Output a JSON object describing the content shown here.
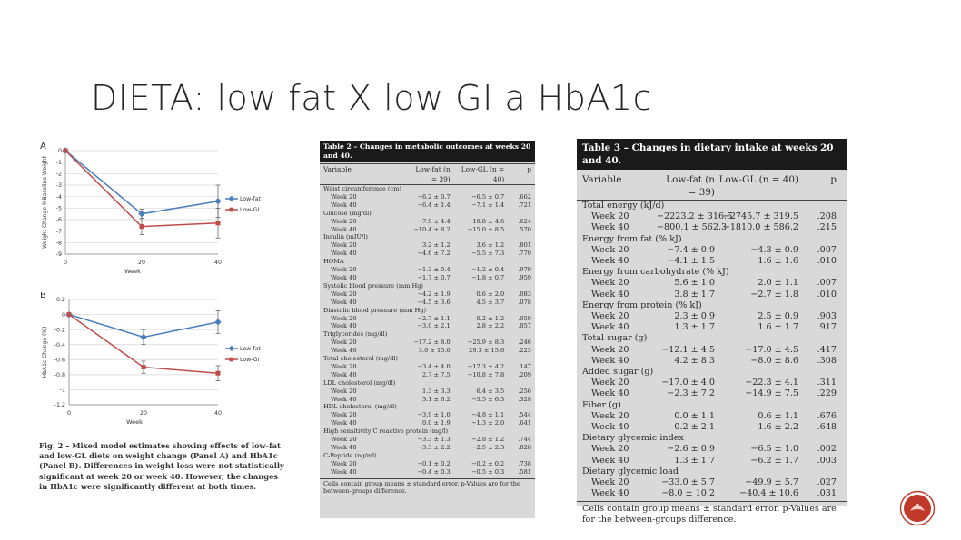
{
  "slide": {
    "title": "DIETA: low fat X low GI a HbA1c"
  },
  "chart_data": [
    {
      "type": "line",
      "panel_label": "A",
      "ylabel": "Weight Change %Baseline Weight",
      "xlabel": "Week",
      "x": [
        0,
        20,
        40
      ],
      "xticks": [
        "0",
        "20",
        "40"
      ],
      "yticks": [
        "0",
        "-1",
        "-2",
        "-3",
        "-4",
        "-5",
        "-6",
        "-7",
        "-8",
        "-9"
      ],
      "ylim": [
        -9,
        0
      ],
      "grid": true,
      "legend": "right",
      "series": [
        {
          "name": "Low-fat",
          "values": [
            0,
            -5.5,
            -4.4
          ],
          "err": [
            0,
            0.4,
            1.4
          ],
          "color": "#4a7ebb"
        },
        {
          "name": "Low-GI",
          "values": [
            0,
            -6.6,
            -6.3
          ],
          "err": [
            0,
            0.7,
            1.3
          ],
          "color": "#be4b48"
        }
      ]
    },
    {
      "type": "line",
      "panel_label": "B",
      "ylabel": "HbA1c Change (%)",
      "xlabel": "Week",
      "x": [
        0,
        20,
        40
      ],
      "xticks": [
        "0",
        "20",
        "40"
      ],
      "yticks": [
        "0.2",
        "0",
        "-0.2",
        "-0.4",
        "-0.6",
        "-0.8",
        "-1",
        "-1.2"
      ],
      "ylim": [
        -1.2,
        0.2
      ],
      "grid": true,
      "legend": "right",
      "series": [
        {
          "name": "Low-fat",
          "values": [
            0,
            -0.3,
            -0.1
          ],
          "err": [
            0,
            0.1,
            0.15
          ],
          "color": "#4a7ebb"
        },
        {
          "name": "Low-GI",
          "values": [
            0,
            -0.7,
            -0.78
          ],
          "err": [
            0,
            0.08,
            0.1
          ],
          "color": "#be4b48"
        }
      ]
    }
  ],
  "figure_caption": {
    "label": "Fig. 2 –",
    "text": "Mixed model estimates showing effects of low-fat and low-GL diets on weight change (Panel A) and HbA1c (Panel B). Differences in weight loss were not statistically significant at week 20 or week 40. However, the changes in HbA1c were significantly different at both times."
  },
  "table2": {
    "title": "Table 2 – Changes in metabolic outcomes at weeks 20 and 40.",
    "headers": [
      "Variable",
      "Low-fat (n = 39)",
      "Low-GL (n = 40)",
      "p"
    ],
    "rows": [
      {
        "kind": "sec",
        "cells": [
          "Waist circumference (cm)"
        ]
      },
      {
        "kind": "sub",
        "cells": [
          "Week 20",
          "−6.2 ± 0.7",
          "−6.5 ± 0.7",
          ".662"
        ]
      },
      {
        "kind": "sub",
        "cells": [
          "Week 40",
          "−6.4 ± 1.4",
          "−7.1 ± 1.4",
          ".721"
        ]
      },
      {
        "kind": "sec",
        "cells": [
          "Glucose (mg/dl)"
        ]
      },
      {
        "kind": "sub",
        "cells": [
          "Week 20",
          "−7.9 ± 4.4",
          "−10.8 ± 4.6",
          ".624"
        ]
      },
      {
        "kind": "sub",
        "cells": [
          "Week 40",
          "−10.4 ± 8.2",
          "−15.0 ± 8.5",
          ".570"
        ]
      },
      {
        "kind": "sec",
        "cells": [
          "Insulin (mIU/l)"
        ]
      },
      {
        "kind": "sub",
        "cells": [
          "Week 20",
          "3.2 ± 1.2",
          "3.6 ± 1.2",
          ".801"
        ]
      },
      {
        "kind": "sub",
        "cells": [
          "Week 40",
          "−4.6 ± 7.2",
          "−5.5 ± 7.3",
          ".770"
        ]
      },
      {
        "kind": "sec",
        "cells": [
          "HOMA"
        ]
      },
      {
        "kind": "sub",
        "cells": [
          "Week 20",
          "−1.3 ± 0.4",
          "−1.2 ± 0.4",
          ".979"
        ]
      },
      {
        "kind": "sub",
        "cells": [
          "Week 40",
          "−1.7 ± 0.7",
          "−1.8 ± 0.7",
          ".959"
        ]
      },
      {
        "kind": "sec",
        "cells": [
          "Systolic blood pressure (mm Hg)"
        ]
      },
      {
        "kind": "sub",
        "cells": [
          "Week 20",
          "−4.2 ± 1.9",
          "0.6 ± 2.0",
          ".083"
        ]
      },
      {
        "kind": "sub",
        "cells": [
          "Week 40",
          "−4.5 ± 3.6",
          "4.5 ± 3.7",
          ".078"
        ]
      },
      {
        "kind": "sec",
        "cells": [
          "Diastolic blood pressure (mm Hg)"
        ]
      },
      {
        "kind": "sub",
        "cells": [
          "Week 20",
          "−2.7 ± 1.1",
          "0.2 ± 1.2",
          ".059"
        ]
      },
      {
        "kind": "sub",
        "cells": [
          "Week 40",
          "−3.0 ± 2.1",
          "2.8 ± 2.2",
          ".057"
        ]
      },
      {
        "kind": "sec",
        "cells": [
          "Triglycerides (mg/dl)"
        ]
      },
      {
        "kind": "sub",
        "cells": [
          "Week 20",
          "−17.2 ± 8.0",
          "−25.9 ± 8.3",
          ".246"
        ]
      },
      {
        "kind": "sub",
        "cells": [
          "Week 40",
          "3.0 ± 15.0",
          "29.3 ± 15.6",
          ".223"
        ]
      },
      {
        "kind": "sec",
        "cells": [
          "Total cholesterol (mg/dl)"
        ]
      },
      {
        "kind": "sub",
        "cells": [
          "Week 20",
          "−3.4 ± 4.0",
          "−17.3 ± 4.2",
          ".147"
        ]
      },
      {
        "kind": "sub",
        "cells": [
          "Week 40",
          "2.7 ± 7.5",
          "−10.8 ± 7.8",
          ".209"
        ]
      },
      {
        "kind": "sec",
        "cells": [
          "LDL cholesterol (mg/dl)"
        ]
      },
      {
        "kind": "sub",
        "cells": [
          "Week 20",
          "1.3 ± 3.3",
          "6.4 ± 3.5",
          ".256"
        ]
      },
      {
        "kind": "sub",
        "cells": [
          "Week 40",
          "3.1 ± 6.2",
          "−5.5 ± 6.3",
          ".328"
        ]
      },
      {
        "kind": "sec",
        "cells": [
          "HDL cholesterol (mg/dl)"
        ]
      },
      {
        "kind": "sub",
        "cells": [
          "Week 20",
          "−3.9 ± 1.0",
          "−4.8 ± 1.1",
          ".544"
        ]
      },
      {
        "kind": "sub",
        "cells": [
          "Week 40",
          "0.0 ± 1.9",
          "−1.3 ± 2.0",
          ".641"
        ]
      },
      {
        "kind": "sec",
        "cells": [
          "High sensitivity C reactive protein (mg/l)"
        ]
      },
      {
        "kind": "sub",
        "cells": [
          "Week 20",
          "−3.3 ± 1.3",
          "−2.8 ± 1.2",
          ".744"
        ]
      },
      {
        "kind": "sub",
        "cells": [
          "Week 40",
          "−3.3 ± 2.2",
          "−2.5 ± 2.3",
          ".828"
        ]
      },
      {
        "kind": "sec",
        "cells": [
          "C-Peptide (ng/ml)"
        ]
      },
      {
        "kind": "sub",
        "cells": [
          "Week 20",
          "−0.1 ± 0.2",
          "−0.2 ± 0.2",
          ".738"
        ]
      },
      {
        "kind": "sub",
        "cells": [
          "Week 40",
          "−0.4 ± 0.3",
          "−0.5 ± 0.3",
          ".581"
        ]
      }
    ],
    "footnote": "Cells contain group means ± standard error. p-Values are for the between-groups difference."
  },
  "table3": {
    "title": "Table 3 – Changes in dietary intake at weeks 20 and 40.",
    "headers": [
      "Variable",
      "Low-fat (n = 39)",
      "Low-GL (n = 40)",
      "p"
    ],
    "rows": [
      {
        "kind": "sec",
        "cells": [
          "Total energy (kJ/d)"
        ]
      },
      {
        "kind": "sub",
        "cells": [
          "Week 20",
          "−2223.2 ± 316.5",
          "−2745.7 ± 319.5",
          ".208"
        ]
      },
      {
        "kind": "sub",
        "cells": [
          "Week 40",
          "−800.1 ± 562.3",
          "−1810.0 ± 586.2",
          ".215"
        ]
      },
      {
        "kind": "sec",
        "cells": [
          "Energy from fat (% kJ)"
        ]
      },
      {
        "kind": "sub",
        "cells": [
          "Week 20",
          "−7.4 ± 0.9",
          "−4.3 ± 0.9",
          ".007"
        ]
      },
      {
        "kind": "sub",
        "cells": [
          "Week 40",
          "−4.1 ± 1.5",
          "1.6 ± 1.6",
          ".010"
        ]
      },
      {
        "kind": "sec",
        "cells": [
          "Energy from carbohydrate (% kJ)"
        ]
      },
      {
        "kind": "sub",
        "cells": [
          "Week 20",
          "5.6 ± 1.0",
          "2.0 ± 1.1",
          ".007"
        ]
      },
      {
        "kind": "sub",
        "cells": [
          "Week 40",
          "3.8 ± 1.7",
          "−2.7 ± 1.8",
          ".010"
        ]
      },
      {
        "kind": "sec",
        "cells": [
          "Energy from protein (% kJ)"
        ]
      },
      {
        "kind": "sub",
        "cells": [
          "Week 20",
          "2.3 ± 0.9",
          "2.5 ± 0.9",
          ".903"
        ]
      },
      {
        "kind": "sub",
        "cells": [
          "Week 40",
          "1.3 ± 1.7",
          "1.6 ± 1.7",
          ".917"
        ]
      },
      {
        "kind": "sec",
        "cells": [
          "Total sugar (g)"
        ]
      },
      {
        "kind": "sub",
        "cells": [
          "Week 20",
          "−12.1 ± 4.5",
          "−17.0 ± 4.5",
          ".417"
        ]
      },
      {
        "kind": "sub",
        "cells": [
          "Week 40",
          "4.2 ± 8.3",
          "−8.0 ± 8.6",
          ".308"
        ]
      },
      {
        "kind": "sec",
        "cells": [
          "Added sugar (g)"
        ]
      },
      {
        "kind": "sub",
        "cells": [
          "Week 20",
          "−17.0 ± 4.0",
          "−22.3 ± 4.1",
          ".311"
        ]
      },
      {
        "kind": "sub",
        "cells": [
          "Week 40",
          "−2.3 ± 7.2",
          "−14.9 ± 7.5",
          ".229"
        ]
      },
      {
        "kind": "sec",
        "cells": [
          "Fiber (g)"
        ]
      },
      {
        "kind": "sub",
        "cells": [
          "Week 20",
          "0.0 ± 1.1",
          "0.6 ± 1.1",
          ".676"
        ]
      },
      {
        "kind": "sub",
        "cells": [
          "Week 40",
          "0.2 ± 2.1",
          "1.6 ± 2.2",
          ".648"
        ]
      },
      {
        "kind": "sec",
        "cells": [
          "Dietary glycemic index"
        ]
      },
      {
        "kind": "sub",
        "cells": [
          "Week 20",
          "−2.6 ± 0.9",
          "−6.5 ± 1.0",
          ".002"
        ]
      },
      {
        "kind": "sub",
        "cells": [
          "Week 40",
          "1.3 ± 1.7",
          "−6.2 ± 1.7",
          ".003"
        ]
      },
      {
        "kind": "sec",
        "cells": [
          "Dietary glycemic load"
        ]
      },
      {
        "kind": "sub",
        "cells": [
          "Week 20",
          "−33.0 ± 5.7",
          "−49.9 ± 5.7",
          ".027"
        ]
      },
      {
        "kind": "sub",
        "cells": [
          "Week 40",
          "−8.0 ± 10.2",
          "−40.4 ± 10.6",
          ".031"
        ]
      }
    ],
    "footnote": "Cells contain group means ± standard error. p-Values are for the between-groups difference."
  },
  "colors": {
    "lowfat": "#4a7ebb",
    "lowgi": "#be4b48",
    "accent": "#c0392b"
  },
  "logo": {
    "icon": "circle-emblem-icon"
  }
}
